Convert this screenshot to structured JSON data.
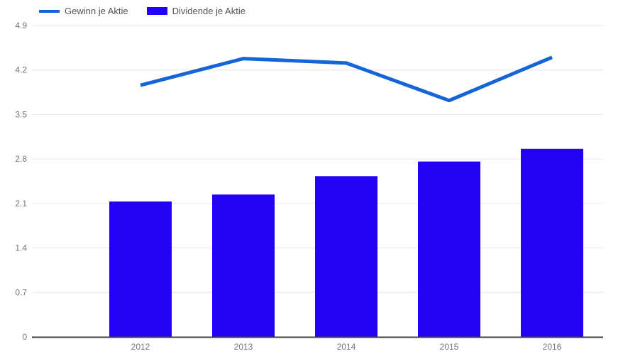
{
  "chart_data": {
    "type": "combo",
    "categories": [
      "2012",
      "2013",
      "2014",
      "2015",
      "2016"
    ],
    "series": [
      {
        "name": "Gewinn je Aktie",
        "type": "line",
        "color": "#1565d8",
        "values": [
          3.96,
          4.38,
          4.31,
          3.72,
          4.4
        ]
      },
      {
        "name": "Dividende je Aktie",
        "type": "bar",
        "color": "#2201f5",
        "values": [
          2.13,
          2.24,
          2.53,
          2.76,
          2.96
        ]
      }
    ],
    "title": "",
    "xlabel": "",
    "ylabel": "",
    "ylim": [
      0,
      4.9
    ],
    "yticks": [
      0,
      0.7,
      1.4,
      2.1,
      2.8,
      3.5,
      4.2,
      4.9
    ],
    "ytick_labels": [
      "0",
      "0.7",
      "1.4",
      "2.1",
      "2.8",
      "3.5",
      "4.2",
      "4.9"
    ],
    "grid": true,
    "legend_position": "top-left",
    "colors": {
      "grid_line": "#e6e6e6",
      "baseline": "#424242",
      "axis_text": "#757575",
      "legend_text": "#545454",
      "background": "#ffffff"
    }
  }
}
